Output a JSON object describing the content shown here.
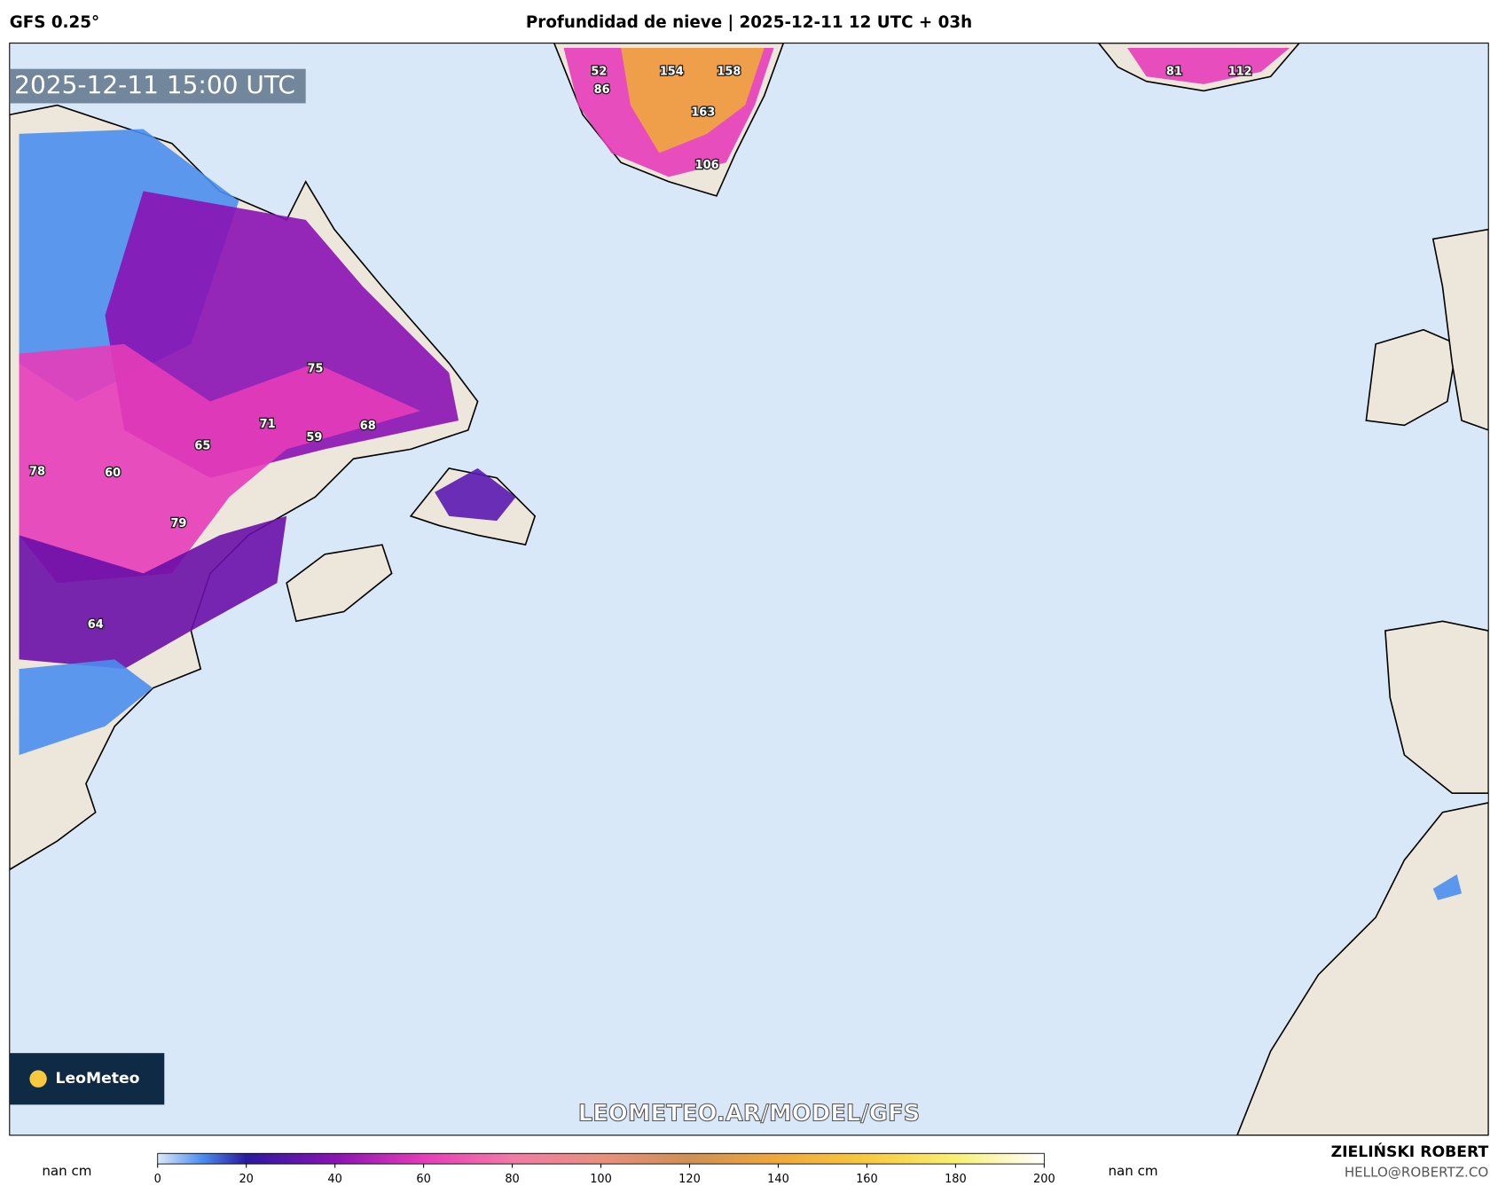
{
  "header": {
    "model": "GFS 0.25°",
    "title": "Profundidad de nieve | 2025-12-11 12 UTC + 03h"
  },
  "map": {
    "timestamp": "2025-12-11 15:00 UTC",
    "watermark": "LEOMETEO.AR/MODEL/GFS",
    "logo": "LeoMeteo",
    "labels": [
      "52",
      "154",
      "158",
      "86",
      "163",
      "106",
      "81",
      "112",
      "75",
      "71",
      "68",
      "59",
      "65",
      "78",
      "60",
      "79",
      "64"
    ]
  },
  "colorbar": {
    "unit_left": "nan cm",
    "unit_right": "nan cm",
    "range": [
      0,
      200
    ],
    "ticks": [
      0,
      20,
      40,
      60,
      80,
      100,
      120,
      140,
      160,
      180,
      200
    ]
  },
  "footer": {
    "author": "ZIELIŃSKI ROBERT",
    "email": "HELLO@ROBERTZ.CO"
  }
}
